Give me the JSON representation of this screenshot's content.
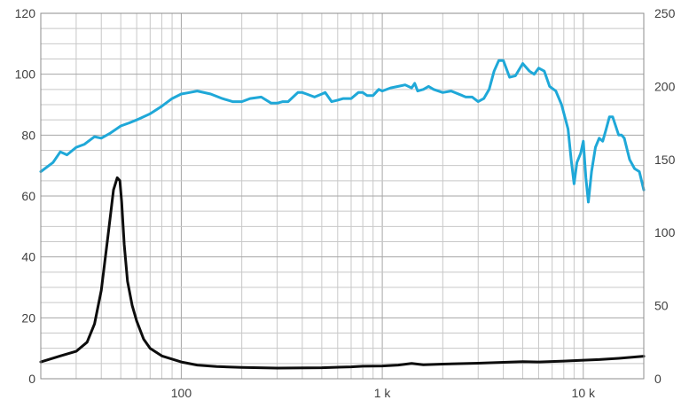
{
  "chart_data": {
    "type": "line",
    "title": "",
    "xscale": "log",
    "xlim": [
      20,
      20000
    ],
    "ylim": [
      0,
      120
    ],
    "y2lim": [
      0,
      250
    ],
    "grid": true,
    "legend": "none",
    "x_major_ticks": [
      {
        "value": 100,
        "label": "100"
      },
      {
        "value": 1000,
        "label": "1 k"
      },
      {
        "value": 10000,
        "label": "10 k"
      }
    ],
    "y_ticks": [
      {
        "value": 0,
        "label": "0"
      },
      {
        "value": 20,
        "label": "20"
      },
      {
        "value": 40,
        "label": "40"
      },
      {
        "value": 60,
        "label": "60"
      },
      {
        "value": 80,
        "label": "80"
      },
      {
        "value": 100,
        "label": "100"
      },
      {
        "value": 120,
        "label": "120"
      }
    ],
    "y2_ticks": [
      {
        "value": 0,
        "label": "0"
      },
      {
        "value": 50,
        "label": "50"
      },
      {
        "value": 100,
        "label": "100"
      },
      {
        "value": 150,
        "label": "150"
      },
      {
        "value": 200,
        "label": "200"
      },
      {
        "value": 250,
        "label": "250"
      }
    ],
    "series": [
      {
        "axis": "left",
        "color": "#1fa8d8",
        "x": [
          20,
          23,
          25,
          26,
          27,
          30,
          33,
          37,
          40,
          44,
          50,
          55,
          60,
          70,
          80,
          90,
          100,
          110,
          120,
          140,
          160,
          180,
          200,
          220,
          250,
          280,
          300,
          320,
          340,
          380,
          400,
          420,
          460,
          500,
          520,
          560,
          600,
          640,
          700,
          760,
          800,
          840,
          900,
          960,
          1000,
          1100,
          1200,
          1300,
          1400,
          1450,
          1500,
          1600,
          1700,
          1800,
          2000,
          2200,
          2500,
          2600,
          2800,
          3000,
          3200,
          3400,
          3600,
          3800,
          4000,
          4300,
          4600,
          5000,
          5400,
          5700,
          6000,
          6400,
          6800,
          7300,
          7800,
          8400,
          8700,
          9000,
          9300,
          9700,
          10000,
          10300,
          10600,
          11000,
          11500,
          12000,
          12500,
          13000,
          13500,
          14000,
          15000,
          15500,
          16000,
          17000,
          18000,
          19000,
          20000
        ],
        "y": [
          68,
          71,
          74.5,
          74,
          73.5,
          76,
          77,
          79.5,
          79,
          80.5,
          83,
          84,
          85,
          87,
          89.5,
          92,
          93.5,
          94,
          94.5,
          93.5,
          92,
          91,
          91,
          92,
          92.5,
          90.5,
          90.5,
          91,
          91,
          94,
          94,
          93.5,
          92.5,
          93.5,
          94,
          91,
          91.5,
          92,
          92,
          94,
          94,
          93,
          93,
          95,
          94.5,
          95.5,
          96,
          96.5,
          95.5,
          97,
          94.5,
          95,
          96,
          95,
          94,
          94.5,
          93,
          92.5,
          92.5,
          91,
          92,
          95,
          101,
          104.5,
          104.5,
          99,
          99.5,
          103.5,
          101,
          100,
          102,
          101,
          96,
          94.5,
          90,
          82,
          72,
          64,
          71,
          74,
          78,
          66,
          58,
          68,
          76,
          79,
          78,
          82,
          86,
          86,
          80,
          80,
          79,
          72,
          69,
          68,
          62
        ]
      },
      {
        "axis": "left",
        "color": "#0d0d0d",
        "x": [
          20,
          25,
          30,
          34,
          37,
          40,
          43,
          46,
          48,
          49.5,
          50.5,
          52,
          54,
          57,
          60,
          65,
          70,
          80,
          100,
          120,
          150,
          200,
          300,
          500,
          700,
          800,
          1000,
          1200,
          1400,
          1600,
          2000,
          3000,
          4000,
          5000,
          6000,
          8000,
          10000,
          12000,
          15000,
          20000
        ],
        "y": [
          5.5,
          7.5,
          9,
          12,
          18,
          29,
          46,
          62,
          66,
          65,
          58,
          44,
          32,
          24,
          19,
          13,
          10,
          7.5,
          5.5,
          4.5,
          4,
          3.7,
          3.5,
          3.6,
          3.9,
          4.1,
          4.2,
          4.5,
          5,
          4.6,
          4.8,
          5.1,
          5.4,
          5.6,
          5.5,
          5.8,
          6.1,
          6.3,
          6.7,
          7.4
        ]
      }
    ]
  }
}
